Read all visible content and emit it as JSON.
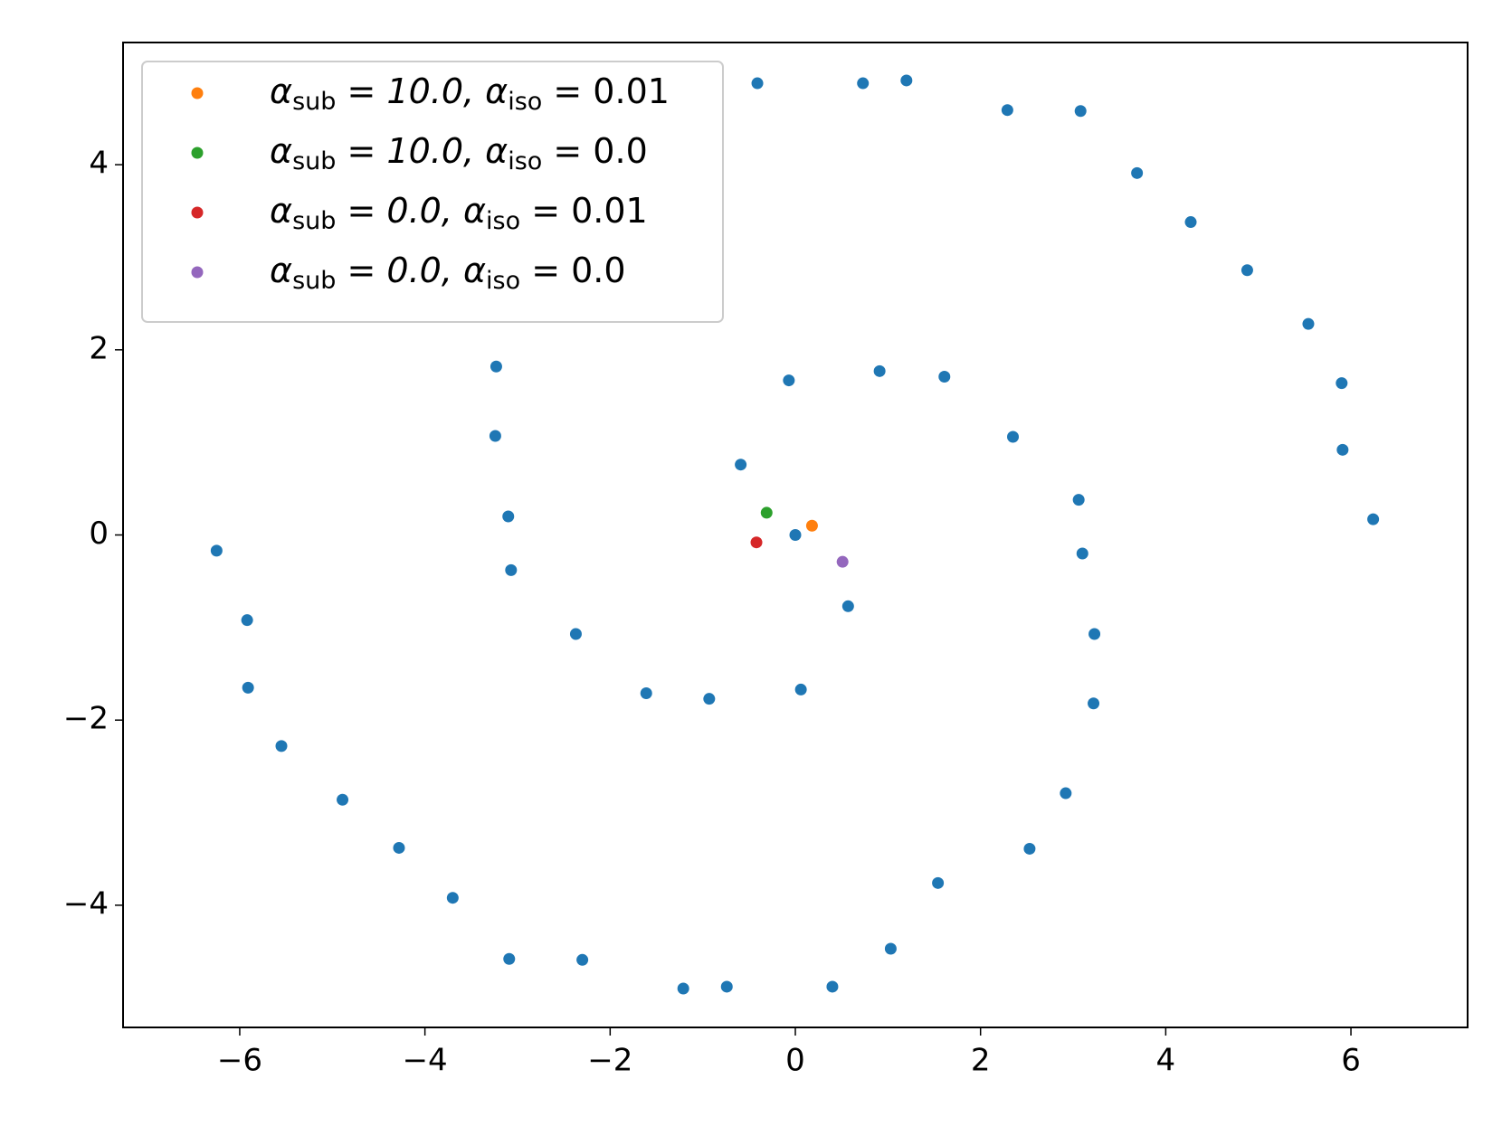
{
  "chart_data": {
    "type": "scatter",
    "xlim": [
      -7.26,
      7.26
    ],
    "ylim": [
      -5.32,
      5.32
    ],
    "xticks": [
      {
        "value": -6,
        "label": "−6"
      },
      {
        "value": -4,
        "label": "−4"
      },
      {
        "value": -2,
        "label": "−2"
      },
      0,
      2,
      4,
      6
    ],
    "yticks": [
      {
        "value": -4,
        "label": "−4"
      },
      {
        "value": -2,
        "label": "−2"
      },
      0,
      2,
      4
    ],
    "legend_position": "upper left",
    "series": [
      {
        "color": "#1f77b4",
        "x": [
          -0.41,
          0.73,
          1.2,
          2.29,
          3.08,
          3.69,
          4.27,
          4.88,
          5.54,
          5.9,
          5.91,
          6.24,
          -6.25,
          -5.92,
          -5.91,
          -5.55,
          -4.89,
          -4.28,
          -3.7,
          -3.09,
          -2.3,
          -1.21,
          -0.74,
          0.4,
          1.03,
          1.54,
          2.53,
          2.92,
          3.22,
          3.23,
          3.1,
          3.06,
          2.35,
          1.61,
          0.91,
          -0.07,
          -0.59,
          0,
          0.57,
          0.06,
          -0.93,
          -1.61,
          -2.37,
          -3.07,
          -3.1,
          -3.24,
          -3.23
        ],
        "values": [
          4.88,
          4.88,
          4.91,
          4.59,
          4.58,
          3.91,
          3.38,
          2.86,
          2.28,
          1.64,
          0.92,
          0.17,
          -0.17,
          -0.92,
          -1.65,
          -2.28,
          -2.86,
          -3.38,
          -3.92,
          -4.58,
          -4.59,
          -4.9,
          -4.88,
          -4.88,
          -4.47,
          -3.76,
          -3.39,
          -2.79,
          -1.82,
          -1.07,
          -0.2,
          0.38,
          1.06,
          1.71,
          1.77,
          1.67,
          0.76,
          0,
          -0.77,
          -1.67,
          -1.77,
          -1.71,
          -1.07,
          -0.38,
          0.2,
          1.07,
          1.82
        ]
      },
      {
        "name": "α_sub = 10.0, α_iso = 0.01",
        "color": "#ff7f0e",
        "x": [
          0.18
        ],
        "values": [
          0.1
        ]
      },
      {
        "name": "α_sub = 10.0, α_iso = 0.0",
        "color": "#2ca02c",
        "x": [
          -0.31
        ],
        "values": [
          0.24
        ]
      },
      {
        "name": "α_sub = 0.0, α_iso = 0.01",
        "color": "#d62728",
        "x": [
          -0.42
        ],
        "values": [
          -0.08
        ]
      },
      {
        "name": "α_sub = 0.0, α_iso = 0.0",
        "color": "#9467bd",
        "x": [
          0.51
        ],
        "values": [
          -0.29
        ]
      }
    ]
  }
}
